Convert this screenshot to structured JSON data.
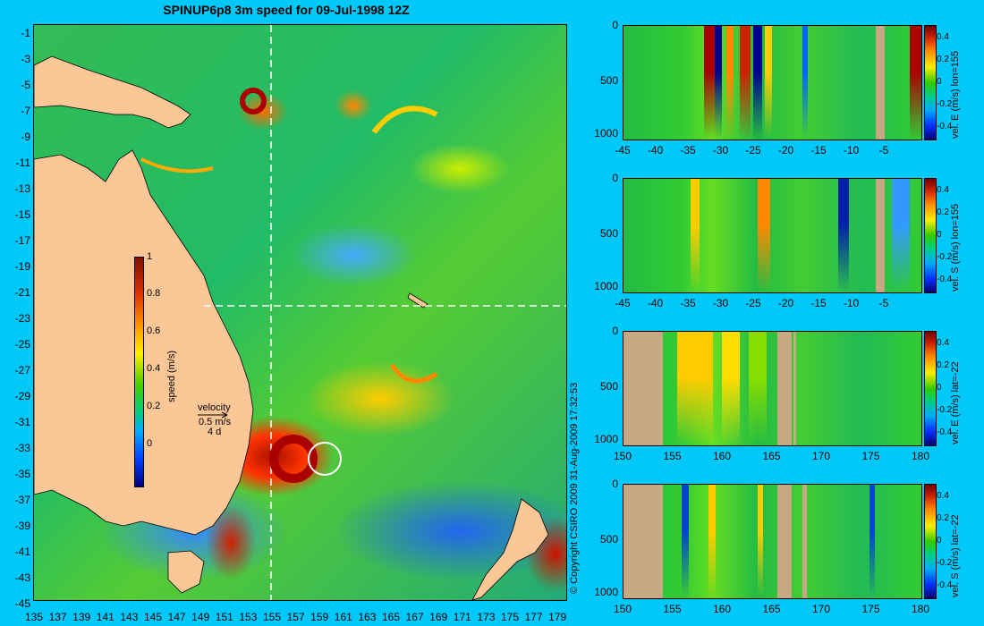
{
  "title": "SPINUP6p8 3m speed for 09-Jul-1998 12Z",
  "copyright": "© Copyright CSIRO 2009   31-Aug-2009 17:32:53",
  "main_map": {
    "y_ticks": [
      "-1",
      "-3",
      "-5",
      "-7",
      "-9",
      "-11",
      "-13",
      "-15",
      "-17",
      "-19",
      "-21",
      "-23",
      "-25",
      "-27",
      "-29",
      "-31",
      "-33",
      "-35",
      "-37",
      "-39",
      "-41",
      "-43",
      "-45"
    ],
    "x_ticks": [
      "135",
      "137",
      "139",
      "141",
      "143",
      "145",
      "147",
      "149",
      "151",
      "153",
      "155",
      "157",
      "159",
      "161",
      "163",
      "165",
      "167",
      "169",
      "171",
      "173",
      "175",
      "177",
      "179"
    ],
    "colorbar_label": "speed (m/s)",
    "colorbar_ticks": [
      "1",
      "0.8",
      "0.6",
      "0.4",
      "0.2",
      "0"
    ],
    "velocity_label": "velocity",
    "velocity_scale": "0.5 m/s",
    "velocity_duration": "4 d",
    "section_lon": 155,
    "section_lat": -22
  },
  "panels": [
    {
      "label": "vel. E (m/s) lon=155",
      "y_ticks": [
        "0",
        "500",
        "1000"
      ],
      "x_ticks": [
        "-45",
        "-40",
        "-35",
        "-30",
        "-25",
        "-20",
        "-15",
        "-10",
        "-5"
      ],
      "colorbar_ticks": [
        "0.4",
        "0.2",
        "0",
        "-0.2",
        "-0.4"
      ]
    },
    {
      "label": "vel. S (m/s) lon=155",
      "y_ticks": [
        "0",
        "500",
        "1000"
      ],
      "x_ticks": [
        "-45",
        "-40",
        "-35",
        "-30",
        "-25",
        "-20",
        "-15",
        "-10",
        "-5"
      ],
      "colorbar_ticks": [
        "0.4",
        "0.2",
        "0",
        "-0.2",
        "-0.4"
      ]
    },
    {
      "label": "vel. E (m/s) lat=-22",
      "y_ticks": [
        "0",
        "500",
        "1000"
      ],
      "x_ticks": [
        "150",
        "155",
        "160",
        "165",
        "170",
        "175",
        "180"
      ],
      "colorbar_ticks": [
        "0.4",
        "0.2",
        "0",
        "-0.2",
        "-0.4"
      ]
    },
    {
      "label": "vel. S (m/s) lat=-22",
      "y_ticks": [
        "0",
        "500",
        "1000"
      ],
      "x_ticks": [
        "150",
        "155",
        "160",
        "165",
        "170",
        "175",
        "180"
      ],
      "colorbar_ticks": [
        "0.4",
        "0.2",
        "0",
        "-0.2",
        "-0.4"
      ]
    }
  ]
}
